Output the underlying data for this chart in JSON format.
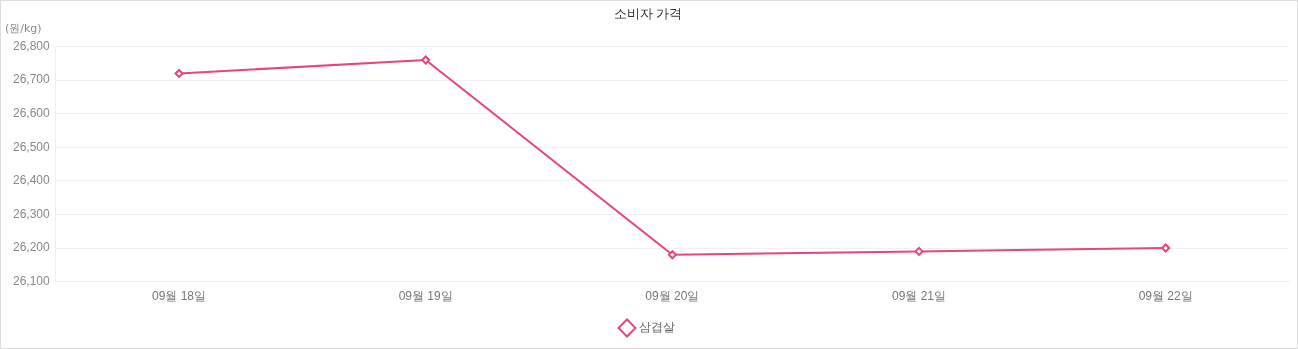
{
  "chart_data": {
    "type": "line",
    "title": "소비자 가격",
    "ylabel": "(원/kg)",
    "categories": [
      "09월 18일",
      "09월 19일",
      "09월 20일",
      "09월 21일",
      "09월 22일"
    ],
    "series": [
      {
        "name": "삼겹살",
        "color": "#e8457a",
        "values": [
          26720,
          26760,
          26180,
          26190,
          26200
        ]
      }
    ],
    "ylim": [
      26100,
      26800
    ],
    "yticks": [
      {
        "value": 26100,
        "label": "26,100"
      },
      {
        "value": 26200,
        "label": "26,200"
      },
      {
        "value": 26300,
        "label": "26,300"
      },
      {
        "value": 26400,
        "label": "26,400"
      },
      {
        "value": 26500,
        "label": "26,500"
      },
      {
        "value": 26600,
        "label": "26,600"
      },
      {
        "value": 26700,
        "label": "26,700"
      },
      {
        "value": 26800,
        "label": "26,800"
      }
    ],
    "grid": "y",
    "legend": "bottom",
    "marker": "diamond",
    "line_style": "solid"
  }
}
